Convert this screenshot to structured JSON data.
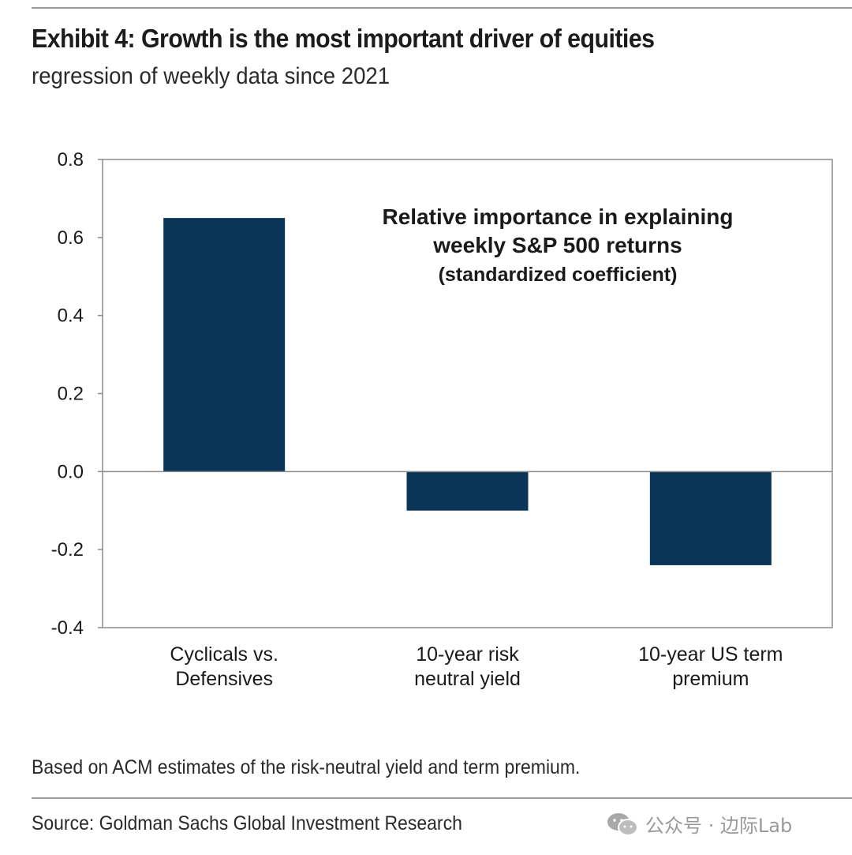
{
  "header": {
    "title": "Exhibit 4: Growth is the most important driver of equities",
    "subtitle": "regression of weekly data since 2021"
  },
  "chart_data": {
    "type": "bar",
    "categories": [
      [
        "Cyclicals vs.",
        "Defensives"
      ],
      [
        "10-year risk",
        "neutral yield"
      ],
      [
        "10-year US term",
        "premium"
      ]
    ],
    "values": [
      0.65,
      -0.1,
      -0.24
    ],
    "annotation": [
      "Relative importance in explaining",
      "weekly S&P 500 returns",
      "(standardized coefficient)"
    ],
    "ylim": [
      -0.4,
      0.8
    ],
    "yticks": [
      0.8,
      0.6,
      0.4,
      0.2,
      0.0,
      -0.2,
      -0.4
    ],
    "ytick_labels": [
      "0.8",
      "0.6",
      "0.4",
      "0.2",
      "0.0",
      "-0.2",
      "-0.4"
    ],
    "bar_color": "#0b3558",
    "axis_color": "#8c8c8c",
    "grid": false,
    "legend": "none"
  },
  "footer": {
    "note": "Based on ACM estimates of the risk-neutral yield and term premium.",
    "source": "Source: Goldman Sachs Global Investment Research",
    "watermark": "公众号 · 边际Lab",
    "watermark_icon": "wechat-icon"
  }
}
